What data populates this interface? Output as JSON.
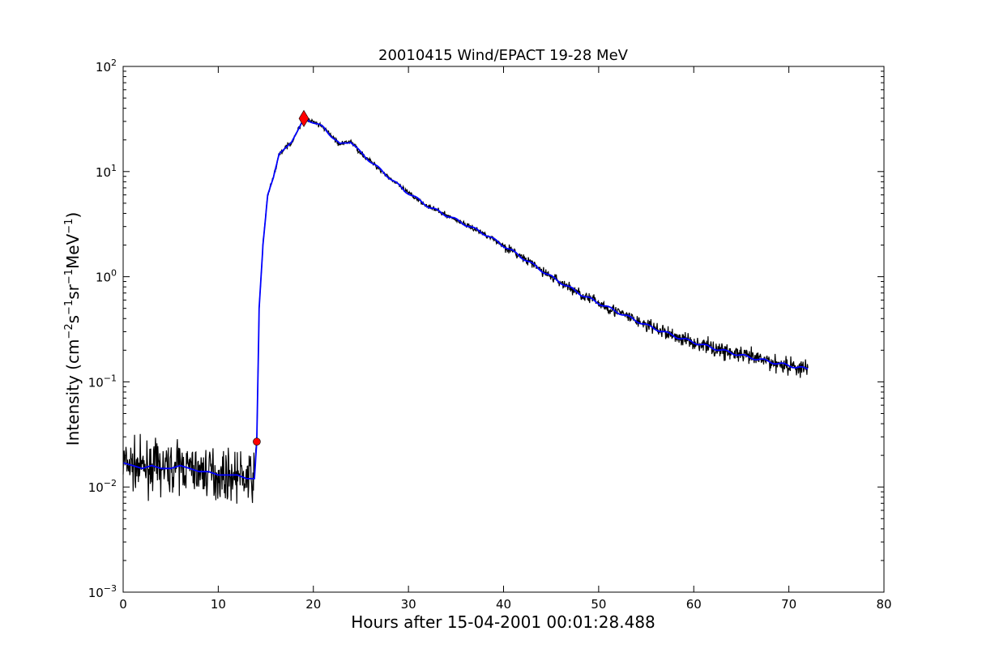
{
  "chart_data": {
    "type": "line",
    "title": "20010415 Wind/EPACT 19-28 MeV",
    "xlabel": "Hours after 15-04-2001 00:01:28.488",
    "ylabel": "Intensity (cm",
    "ylabel_parts": [
      "Intensity (cm",
      "−2",
      "s",
      "−1",
      "sr",
      "−1",
      "MeV",
      "−1",
      ")"
    ],
    "xlim": [
      0,
      80
    ],
    "ylim": [
      0.001,
      100
    ],
    "yscale": "log",
    "xticks": [
      "0",
      "10",
      "20",
      "30",
      "40",
      "50",
      "60",
      "70",
      "80"
    ],
    "yticks": [
      {
        "base": "10",
        "exp": "-3"
      },
      {
        "base": "10",
        "exp": "-2"
      },
      {
        "base": "10",
        "exp": "-1"
      },
      {
        "base": "10",
        "exp": "0"
      },
      {
        "base": "10",
        "exp": "1"
      },
      {
        "base": "10",
        "exp": "2"
      }
    ],
    "series": [
      {
        "name": "raw intensity",
        "color": "#000000",
        "noise_sigma_pre": 0.22,
        "noise_sigma_post": 0.04
      },
      {
        "name": "smoothed intensity",
        "color": "#0000ff",
        "x": [
          0,
          1,
          2,
          3,
          4,
          5,
          6,
          7,
          8,
          9,
          10,
          11,
          12,
          13,
          13.8,
          14.05,
          14.3,
          14.7,
          15.2,
          15.8,
          16.4,
          17.7,
          18.4,
          19.0,
          19.85,
          21.1,
          22.8,
          23.9,
          25,
          27.1,
          29.6,
          32.2,
          34.8,
          38.2,
          41.6,
          45,
          48.4,
          51.8,
          55.2,
          58.6,
          62,
          65.4,
          68.8,
          71.8
        ],
        "y": [
          0.017,
          0.016,
          0.015,
          0.016,
          0.015,
          0.015,
          0.016,
          0.015,
          0.014,
          0.014,
          0.013,
          0.013,
          0.013,
          0.012,
          0.012,
          0.027,
          0.5,
          2.0,
          6.0,
          8.8,
          14.7,
          19,
          25,
          32,
          30,
          26,
          18,
          19.5,
          15,
          10.3,
          6.6,
          4.6,
          3.55,
          2.5,
          1.6,
          1.0,
          0.66,
          0.47,
          0.34,
          0.26,
          0.21,
          0.175,
          0.15,
          0.133
        ]
      }
    ],
    "markers": [
      {
        "name": "onset",
        "x": 14.05,
        "y": 0.027,
        "shape": "circle",
        "color": "#ff0000"
      },
      {
        "name": "peak",
        "x": 19.0,
        "y": 32,
        "shape": "diamond",
        "color": "#ff0000"
      }
    ]
  }
}
